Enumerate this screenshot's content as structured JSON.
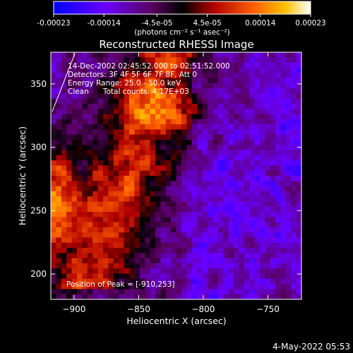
{
  "colorbar": {
    "ticks": [
      {
        "value": -0.00023,
        "label": "-0.00023"
      },
      {
        "value": -0.00014,
        "label": "-0.00014"
      },
      {
        "value": -4.5e-05,
        "label": "-4.5e-05"
      },
      {
        "value": 4.5e-05,
        "label": "4.5e-05"
      },
      {
        "value": 0.00014,
        "label": "0.00014"
      },
      {
        "value": 0.00023,
        "label": "0.00023"
      }
    ],
    "range": [
      -0.00023,
      0.00023
    ],
    "units_label": "(photons cm⁻² s⁻¹ asec⁻²)"
  },
  "chart_data": {
    "type": "heatmap",
    "title": "Reconstructed RHESSI Image",
    "xlabel": "Heliocentric X (arcsec)",
    "ylabel": "Heliocentric Y (arcsec)",
    "xlim": [
      -918,
      -724
    ],
    "ylim": [
      180,
      375
    ],
    "xticks": [
      -900,
      -850,
      -800,
      -750
    ],
    "yticks": [
      200,
      250,
      300,
      350
    ],
    "colormap": "rainbow-hot (blue-purple-red-orange-yellow-white)",
    "peak": {
      "x": -910,
      "y": 253
    },
    "annotations": [
      "14-Dec-2002 02:45:52.000 to 02:51:52.000",
      "Detectors: 3F 4F 5F 6F 7F 8F, Att 0",
      "Energy Range: 25.0 - 50.0 keV",
      "Clean      Total counts: 4.17E+03",
      "Position of Peak = [-910,253]"
    ],
    "grid_resolution": [
      48,
      48
    ]
  },
  "footer": {
    "date_stamp": "4-May-2022 05:53"
  },
  "colors": {
    "background": "#000000",
    "foreground": "#ffffff"
  }
}
